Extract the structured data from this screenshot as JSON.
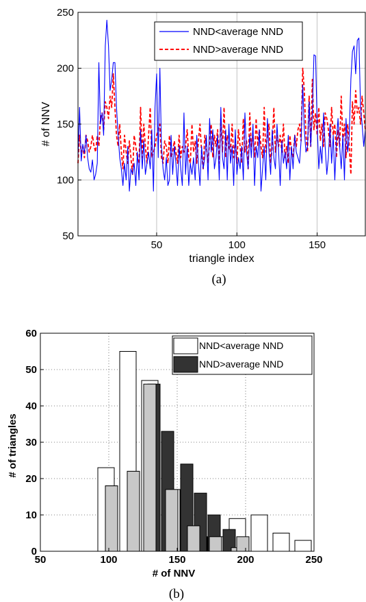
{
  "chart_data": [
    {
      "type": "line",
      "xlabel": "triangle index",
      "ylabel": "# of NNV",
      "xlim": [
        1,
        180
      ],
      "ylim": [
        50,
        250
      ],
      "xticks": [
        50,
        100,
        150
      ],
      "yticks": [
        50,
        100,
        150,
        200,
        250
      ],
      "grid": true,
      "legend_position": "top-right",
      "caption": "(a)",
      "series": [
        {
          "name": "NND<average NND",
          "color": "#0000ff",
          "style": "solid",
          "x": [
            1,
            2,
            3,
            4,
            5,
            6,
            7,
            8,
            9,
            10,
            11,
            12,
            13,
            14,
            15,
            16,
            17,
            18,
            19,
            20,
            21,
            22,
            23,
            24,
            25,
            26,
            27,
            28,
            29,
            30,
            31,
            32,
            33,
            34,
            35,
            36,
            37,
            38,
            39,
            40,
            41,
            42,
            43,
            44,
            45,
            46,
            47,
            48,
            49,
            50,
            51,
            52,
            53,
            54,
            55,
            56,
            57,
            58,
            59,
            60,
            61,
            62,
            63,
            64,
            65,
            66,
            67,
            68,
            69,
            70,
            71,
            72,
            73,
            74,
            75,
            76,
            77,
            78,
            79,
            80,
            81,
            82,
            83,
            84,
            85,
            86,
            87,
            88,
            89,
            90,
            91,
            92,
            93,
            94,
            95,
            96,
            97,
            98,
            99,
            100,
            101,
            102,
            103,
            104,
            105,
            106,
            107,
            108,
            109,
            110,
            111,
            112,
            113,
            114,
            115,
            116,
            117,
            118,
            119,
            120,
            121,
            122,
            123,
            124,
            125,
            126,
            127,
            128,
            129,
            130,
            131,
            132,
            133,
            134,
            135,
            136,
            137,
            138,
            139,
            140,
            141,
            142,
            143,
            144,
            145,
            146,
            147,
            148,
            149,
            150,
            151,
            152,
            153,
            154,
            155,
            156,
            157,
            158,
            159,
            160,
            161,
            162,
            163,
            164,
            165,
            166,
            167,
            168,
            169,
            170,
            171,
            172,
            173,
            174,
            175,
            176,
            177,
            178,
            179,
            180
          ],
          "y": [
            120,
            165,
            117,
            132,
            124,
            140,
            120,
            110,
            107,
            118,
            100,
            105,
            115,
            205,
            150,
            160,
            140,
            220,
            243,
            220,
            180,
            190,
            205,
            205,
            165,
            140,
            120,
            110,
            95,
            115,
            100,
            130,
            90,
            110,
            105,
            115,
            95,
            125,
            100,
            145,
            110,
            135,
            105,
            115,
            125,
            110,
            145,
            90,
            165,
            195,
            120,
            200,
            130,
            110,
            100,
            120,
            95,
            100,
            140,
            105,
            130,
            115,
            95,
            130,
            110,
            95,
            160,
            105,
            130,
            95,
            115,
            105,
            120,
            100,
            140,
            115,
            95,
            130,
            110,
            120,
            140,
            100,
            155,
            125,
            145,
            110,
            120,
            140,
            100,
            165,
            120,
            110,
            145,
            100,
            150,
            115,
            130,
            95,
            145,
            105,
            120,
            110,
            130,
            100,
            160,
            125,
            110,
            140,
            120,
            150,
            95,
            130,
            120,
            145,
            90,
            110,
            130,
            100,
            155,
            125,
            105,
            145,
            120,
            110,
            150,
            125,
            95,
            135,
            115,
            125,
            110,
            140,
            100,
            130,
            110,
            140,
            125,
            120,
            115,
            135,
            185,
            145,
            125,
            130,
            170,
            130,
            160,
            212,
            211,
            150,
            110,
            130,
            115,
            160,
            130,
            105,
            120,
            150,
            115,
            140,
            100,
            135,
            155,
            130,
            110,
            140,
            100,
            155,
            125,
            140,
            190,
            215,
            220,
            195,
            225,
            227,
            165,
            150,
            130,
            145
          ]
        },
        {
          "name": "NND>average NND",
          "color": "#ff0000",
          "style": "dashed",
          "x": [
            1,
            2,
            3,
            4,
            5,
            6,
            7,
            8,
            9,
            10,
            11,
            12,
            13,
            14,
            15,
            16,
            17,
            18,
            19,
            20,
            21,
            22,
            23,
            24,
            25,
            26,
            27,
            28,
            29,
            30,
            31,
            32,
            33,
            34,
            35,
            36,
            37,
            38,
            39,
            40,
            41,
            42,
            43,
            44,
            45,
            46,
            47,
            48,
            49,
            50,
            51,
            52,
            53,
            54,
            55,
            56,
            57,
            58,
            59,
            60,
            61,
            62,
            63,
            64,
            65,
            66,
            67,
            68,
            69,
            70,
            71,
            72,
            73,
            74,
            75,
            76,
            77,
            78,
            79,
            80,
            81,
            82,
            83,
            84,
            85,
            86,
            87,
            88,
            89,
            90,
            91,
            92,
            93,
            94,
            95,
            96,
            97,
            98,
            99,
            100,
            101,
            102,
            103,
            104,
            105,
            106,
            107,
            108,
            109,
            110,
            111,
            112,
            113,
            114,
            115,
            116,
            117,
            118,
            119,
            120,
            121,
            122,
            123,
            124,
            125,
            126,
            127,
            128,
            129,
            130,
            131,
            132,
            133,
            134,
            135,
            136,
            137,
            138,
            139,
            140,
            141,
            142,
            143,
            144,
            145,
            146,
            147,
            148,
            149,
            150,
            151,
            152,
            153,
            154,
            155,
            156,
            157,
            158,
            159,
            160,
            161,
            162,
            163,
            164,
            165,
            166,
            167,
            168,
            169,
            170,
            171,
            172,
            173,
            174,
            175,
            176,
            177,
            178,
            179,
            180
          ],
          "y": [
            115,
            140,
            125,
            130,
            120,
            140,
            135,
            125,
            130,
            140,
            130,
            125,
            140,
            130,
            155,
            160,
            145,
            170,
            165,
            155,
            175,
            165,
            195,
            165,
            140,
            130,
            150,
            125,
            110,
            140,
            125,
            115,
            135,
            120,
            105,
            140,
            130,
            120,
            115,
            165,
            120,
            150,
            130,
            115,
            140,
            165,
            120,
            125,
            130,
            140,
            145,
            150,
            120,
            115,
            135,
            130,
            115,
            140,
            120,
            125,
            135,
            125,
            115,
            140,
            120,
            130,
            125,
            130,
            145,
            120,
            115,
            150,
            125,
            135,
            115,
            135,
            150,
            125,
            110,
            140,
            130,
            115,
            135,
            150,
            120,
            140,
            130,
            145,
            115,
            155,
            125,
            165,
            120,
            140,
            130,
            125,
            150,
            120,
            135,
            115,
            145,
            130,
            115,
            155,
            125,
            135,
            110,
            160,
            130,
            140,
            120,
            155,
            130,
            145,
            130,
            120,
            165,
            125,
            140,
            150,
            115,
            130,
            165,
            125,
            140,
            130,
            140,
            125,
            150,
            120,
            130,
            115,
            140,
            125,
            120,
            140,
            130,
            145,
            150,
            135,
            200,
            180,
            140,
            125,
            175,
            130,
            190,
            145,
            160,
            140,
            165,
            135,
            150,
            130,
            160,
            155,
            145,
            130,
            165,
            140,
            150,
            120,
            145,
            130,
            175,
            135,
            150,
            120,
            150,
            130,
            105,
            170,
            150,
            180,
            160,
            165,
            150,
            175,
            160,
            145
          ]
        }
      ]
    },
    {
      "type": "bar",
      "xlabel": "# of NNV",
      "ylabel": "# of triangles",
      "xlim": [
        50,
        250
      ],
      "ylim": [
        0,
        60
      ],
      "xticks": [
        50,
        100,
        150,
        200,
        250
      ],
      "yticks": [
        0,
        10,
        20,
        30,
        40,
        50,
        60
      ],
      "grid": true,
      "legend_position": "top-right",
      "caption": "(b)",
      "series": [
        {
          "name": "NND<average NND",
          "fill": "#ffffff",
          "centers": [
            98,
            114,
            130,
            146,
            162,
            178,
            194,
            210,
            226,
            242
          ],
          "values": [
            23,
            55,
            47,
            17,
            7,
            4,
            9,
            10,
            5,
            3
          ]
        },
        {
          "name": "NND>average NND",
          "fill": "#333333",
          "centers": [
            102,
            118,
            133,
            143,
            157,
            167,
            177,
            188,
            198
          ],
          "values": [
            18,
            22,
            46,
            33,
            24,
            16,
            10,
            6,
            1
          ]
        },
        {
          "name": "",
          "fill": "#c8c8c8",
          "centers": [
            102,
            118,
            130,
            146,
            162,
            178,
            194,
            198
          ],
          "values": [
            18,
            22,
            46,
            17,
            7,
            4,
            1,
            4
          ]
        }
      ]
    }
  ]
}
